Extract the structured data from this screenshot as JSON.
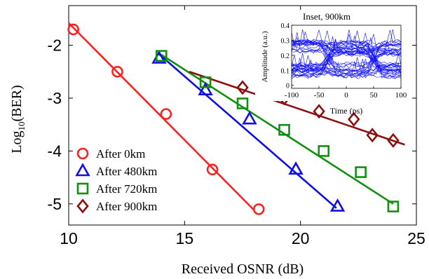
{
  "chart_data": [
    {
      "type": "scatter",
      "title": "",
      "xlabel": "Received OSNR (dB)",
      "ylabel_main": "Log",
      "ylabel_sub": "10",
      "ylabel_tail": "(BER)",
      "xlim": [
        10,
        25
      ],
      "ylim": [
        -5.4,
        -1.25
      ],
      "xticks": [
        10,
        15,
        20,
        25
      ],
      "yticks": [
        -5,
        -4,
        -3,
        -2
      ],
      "grid": false,
      "legend_position": "bottom-left",
      "series": [
        {
          "name": "After 0km",
          "marker": "circle",
          "color": "#ff2020",
          "x": [
            10.2,
            12.1,
            14.2,
            16.2,
            18.2
          ],
          "y": [
            -1.7,
            -2.5,
            -3.3,
            -4.35,
            -5.1
          ],
          "fit": [
            [
              10.0,
              -1.58
            ],
            [
              18.0,
              -5.12
            ]
          ]
        },
        {
          "name": "After 480km",
          "marker": "triangle",
          "color": "#1010e0",
          "x": [
            13.9,
            15.9,
            17.8,
            19.8,
            21.6
          ],
          "y": [
            -2.25,
            -2.85,
            -3.4,
            -4.35,
            -5.05
          ],
          "fit": [
            [
              13.85,
              -2.15
            ],
            [
              21.55,
              -5.08
            ]
          ]
        },
        {
          "name": "After 720km",
          "marker": "square",
          "color": "#109010",
          "x": [
            14.0,
            15.9,
            17.5,
            19.3,
            21.0,
            22.6,
            24.0
          ],
          "y": [
            -2.2,
            -2.7,
            -3.1,
            -3.6,
            -4.0,
            -4.4,
            -5.05
          ],
          "fit": [
            [
              14.0,
              -2.18
            ],
            [
              24.0,
              -5.0
            ]
          ]
        },
        {
          "name": "After 900km",
          "marker": "diamond",
          "color": "#8b1010",
          "x": [
            17.5,
            19.3,
            20.8,
            22.3,
            23.1,
            24.0
          ],
          "y": [
            -2.8,
            -3.0,
            -3.25,
            -3.4,
            -3.7,
            -3.8
          ],
          "fit": [
            [
              15.2,
              -2.5
            ],
            [
              24.5,
              -3.88
            ]
          ]
        }
      ]
    },
    {
      "type": "line",
      "title": "Inset, 900km",
      "xlabel": "Time (ps)",
      "ylabel": "Amplitude (a.u.)",
      "xlim": [
        -100,
        100
      ],
      "ylim": [
        -0.02,
        0.4
      ],
      "xticks": [
        -100,
        -50,
        0,
        50,
        100
      ],
      "yticks": [
        0,
        0.1,
        0.2,
        0.3,
        0.4
      ],
      "color": "#1010ff",
      "series": [
        {
          "name": "eye diagram traces",
          "x": [
            -100,
            -75,
            -50,
            -25,
            0,
            25,
            50,
            75,
            100
          ],
          "y_levels_high": [
            0.24,
            0.25,
            0.26,
            0.25,
            0.25,
            0.26,
            0.26,
            0.25,
            0.24
          ],
          "y_levels_low": [
            0.11,
            0.1,
            0.09,
            0.1,
            0.2,
            0.1,
            0.09,
            0.1,
            0.11
          ]
        }
      ]
    }
  ]
}
